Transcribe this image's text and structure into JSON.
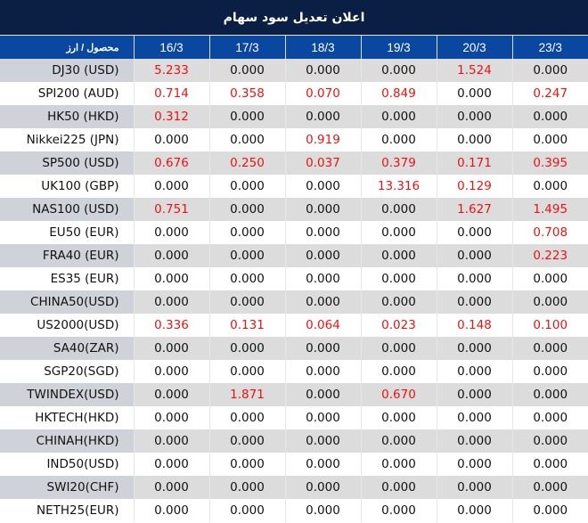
{
  "title": "اعلان تعدیل سود سهام",
  "table": {
    "label_header": "محصول / ارز",
    "dates": [
      "16/3",
      "17/3",
      "18/3",
      "19/3",
      "20/3",
      "23/3"
    ],
    "rows": [
      {
        "product": "DJ30 (USD)",
        "values": [
          "5.233",
          "0.000",
          "0.000",
          "0.000",
          "1.524",
          "0.000"
        ]
      },
      {
        "product": "SPI200 (AUD)",
        "values": [
          "0.714",
          "0.358",
          "0.070",
          "0.849",
          "0.000",
          "0.247"
        ]
      },
      {
        "product": "HK50 (HKD)",
        "values": [
          "0.312",
          "0.000",
          "0.000",
          "0.000",
          "0.000",
          "0.000"
        ]
      },
      {
        "product": "Nikkei225 (JPN)",
        "values": [
          "0.000",
          "0.000",
          "0.919",
          "0.000",
          "0.000",
          "0.000"
        ]
      },
      {
        "product": "SP500 (USD)",
        "values": [
          "0.676",
          "0.250",
          "0.037",
          "0.379",
          "0.171",
          "0.395"
        ]
      },
      {
        "product": "UK100 (GBP)",
        "values": [
          "0.000",
          "0.000",
          "0.000",
          "13.316",
          "0.129",
          "0.000"
        ]
      },
      {
        "product": "NAS100 (USD)",
        "values": [
          "0.751",
          "0.000",
          "0.000",
          "0.000",
          "1.627",
          "1.495"
        ]
      },
      {
        "product": "EU50 (EUR)",
        "values": [
          "0.000",
          "0.000",
          "0.000",
          "0.000",
          "0.000",
          "0.708"
        ]
      },
      {
        "product": "FRA40 (EUR)",
        "values": [
          "0.000",
          "0.000",
          "0.000",
          "0.000",
          "0.000",
          "0.223"
        ]
      },
      {
        "product": "ES35 (EUR)",
        "values": [
          "0.000",
          "0.000",
          "0.000",
          "0.000",
          "0.000",
          "0.000"
        ]
      },
      {
        "product": "CHINA50(USD)",
        "values": [
          "0.000",
          "0.000",
          "0.000",
          "0.000",
          "0.000",
          "0.000"
        ]
      },
      {
        "product": "US2000(USD)",
        "values": [
          "0.336",
          "0.131",
          "0.064",
          "0.023",
          "0.148",
          "0.100"
        ]
      },
      {
        "product": "SA40(ZAR)",
        "values": [
          "0.000",
          "0.000",
          "0.000",
          "0.000",
          "0.000",
          "0.000"
        ]
      },
      {
        "product": "SGP20(SGD)",
        "values": [
          "0.000",
          "0.000",
          "0.000",
          "0.000",
          "0.000",
          "0.000"
        ]
      },
      {
        "product": "TWINDEX(USD)",
        "values": [
          "0.000",
          "1.871",
          "0.000",
          "0.670",
          "0.000",
          "0.000"
        ]
      },
      {
        "product": "HKTECH(HKD)",
        "values": [
          "0.000",
          "0.000",
          "0.000",
          "0.000",
          "0.000",
          "0.000"
        ]
      },
      {
        "product": "CHINAH(HKD)",
        "values": [
          "0.000",
          "0.000",
          "0.000",
          "0.000",
          "0.000",
          "0.000"
        ]
      },
      {
        "product": "IND50(USD)",
        "values": [
          "0.000",
          "0.000",
          "0.000",
          "0.000",
          "0.000",
          "0.000"
        ]
      },
      {
        "product": "SWI20(CHF)",
        "values": [
          "0.000",
          "0.000",
          "0.000",
          "0.000",
          "0.000",
          "0.000"
        ]
      },
      {
        "product": "NETH25(EUR)",
        "values": [
          "0.000",
          "0.000",
          "0.000",
          "0.000",
          "0.000",
          "0.000"
        ]
      }
    ]
  },
  "colors": {
    "title_bg": "#0b1f44",
    "header_bg": "#0a47a0",
    "row_alt_bg": "#dcdcdc",
    "label_alt_bg": "#cfd2d8",
    "positive_value": "#ee1111",
    "zero_value": "#111111"
  }
}
